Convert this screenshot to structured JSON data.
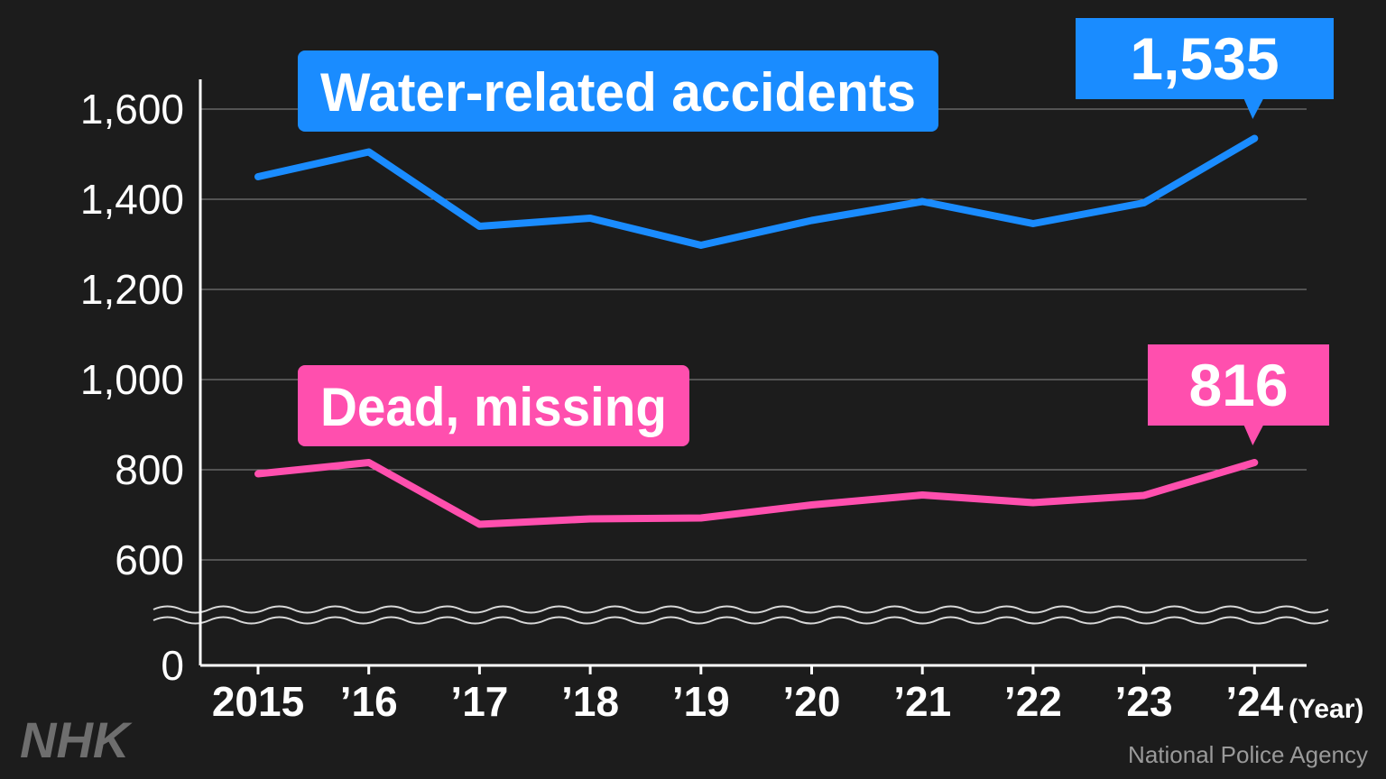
{
  "chart_data": {
    "type": "line",
    "categories": [
      "2015",
      "’16",
      "’17",
      "’18",
      "’19",
      "’20",
      "’21",
      "’22",
      "’23",
      "’24"
    ],
    "x_unit_label": "(Year)",
    "series": [
      {
        "name": "Water-related accidents",
        "color": "#1a8cff",
        "values": [
          1450,
          1505,
          1340,
          1358,
          1298,
          1353,
          1395,
          1346,
          1392,
          1535
        ],
        "end_label": "1,535"
      },
      {
        "name": "Dead, missing",
        "color": "#ff4fae",
        "values": [
          791,
          816,
          679,
          691,
          693,
          722,
          744,
          727,
          743,
          816
        ],
        "end_label": "816"
      }
    ],
    "yticks": [
      {
        "value": 1600,
        "label": "1,600"
      },
      {
        "value": 1400,
        "label": "1,400"
      },
      {
        "value": 1200,
        "label": "1,200"
      },
      {
        "value": 1000,
        "label": "1,000"
      },
      {
        "value": 800,
        "label": "800"
      },
      {
        "value": 600,
        "label": "600"
      },
      {
        "value": 0,
        "label": "0"
      }
    ],
    "ylim": [
      600,
      1660
    ],
    "y_axis_break": true,
    "grid": true
  },
  "branding": {
    "logo": "NHK",
    "source": "National Police Agency"
  }
}
